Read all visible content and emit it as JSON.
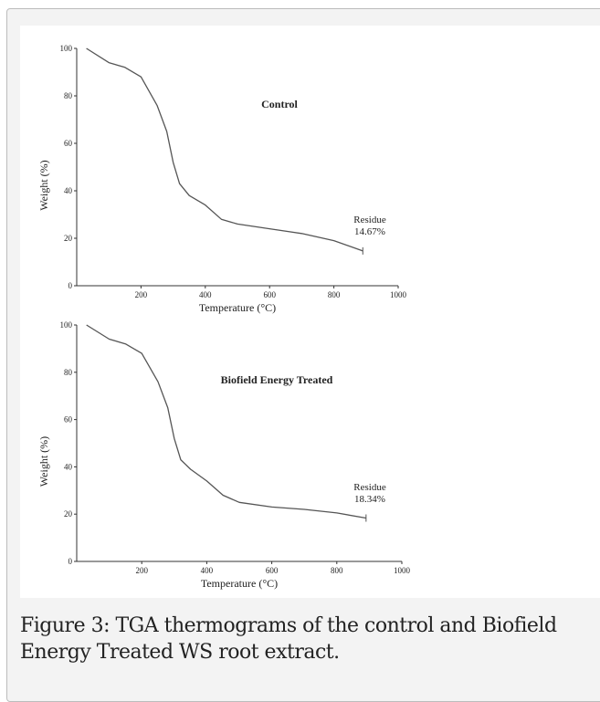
{
  "chart_data": [
    {
      "type": "line",
      "annotation": "Control",
      "ylabel": "Weight (%)",
      "xlabel": "Temperature (°C)",
      "residue_label": [
        "Residue",
        "14.67%"
      ],
      "xlim": [
        0,
        1000
      ],
      "xticks": [
        200,
        400,
        600,
        800,
        1000
      ],
      "ylim": [
        0,
        100
      ],
      "yticks": [
        0,
        20,
        40,
        60,
        80,
        100
      ],
      "series": [
        {
          "name": "Control",
          "color": "#555555",
          "x": [
            30,
            100,
            150,
            200,
            250,
            280,
            300,
            320,
            350,
            400,
            450,
            500,
            600,
            700,
            800,
            890
          ],
          "values": [
            100,
            94,
            92,
            88,
            76,
            65,
            52,
            43,
            38,
            34,
            28,
            26,
            24,
            22,
            19,
            14.67
          ]
        }
      ]
    },
    {
      "type": "line",
      "annotation": "Biofield Energy Treated",
      "ylabel": "Weight (%)",
      "xlabel": "Temperature (°C)",
      "residue_label": [
        "Residue",
        "18.34%"
      ],
      "xlim": [
        0,
        1000
      ],
      "xticks": [
        200,
        400,
        600,
        800,
        1000
      ],
      "ylim": [
        0,
        100
      ],
      "yticks": [
        0,
        20,
        40,
        60,
        80,
        100
      ],
      "series": [
        {
          "name": "Biofield Energy Treated",
          "color": "#555555",
          "x": [
            30,
            100,
            150,
            200,
            250,
            280,
            300,
            320,
            350,
            400,
            450,
            500,
            600,
            700,
            800,
            890
          ],
          "values": [
            100,
            94,
            92,
            88,
            76,
            65,
            52,
            43,
            39,
            34,
            28,
            25,
            23,
            22,
            20.5,
            18.34
          ]
        }
      ]
    }
  ],
  "caption": "Figure 3: TGA thermograms of the control and Biofield Energy Treated WS root extract."
}
